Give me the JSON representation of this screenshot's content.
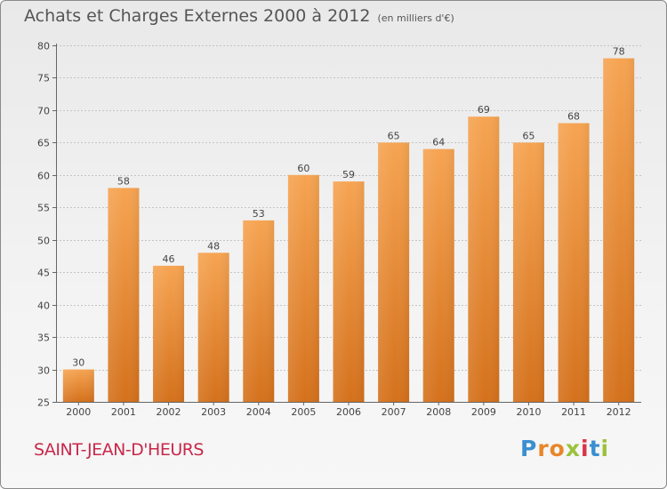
{
  "header": {
    "title": "Achats et Charges Externes 2000 à 2012",
    "unit": "(en milliers d'€)"
  },
  "footer": {
    "commune": "SAINT-JEAN-D'HEURS",
    "logo_letters": [
      "P",
      "r",
      "o",
      "x",
      "i",
      "t",
      "i"
    ],
    "logo_colors": [
      "#3a8fd0",
      "#e8862a",
      "#e8862a",
      "#9bc23c",
      "#d8344a",
      "#3a8fd0",
      "#9bc23c"
    ]
  },
  "colors": {
    "bar_top": "#f6a452",
    "bar_bottom": "#d4711c",
    "grid": "#c4c4c4",
    "axis": "#666666"
  },
  "chart_data": {
    "type": "bar",
    "title": "Achats et Charges Externes 2000 à 2012",
    "subtitle": "(en milliers d'€)",
    "xlabel": "",
    "ylabel": "",
    "categories": [
      "2000",
      "2001",
      "2002",
      "2003",
      "2004",
      "2005",
      "2006",
      "2007",
      "2008",
      "2009",
      "2010",
      "2011",
      "2012"
    ],
    "values": [
      30,
      58,
      46,
      48,
      53,
      60,
      59,
      65,
      64,
      69,
      65,
      68,
      78
    ],
    "ylim": [
      25,
      80
    ],
    "yticks": [
      25,
      30,
      35,
      40,
      45,
      50,
      55,
      60,
      65,
      70,
      75,
      80
    ],
    "grid": true,
    "legend": "none"
  }
}
